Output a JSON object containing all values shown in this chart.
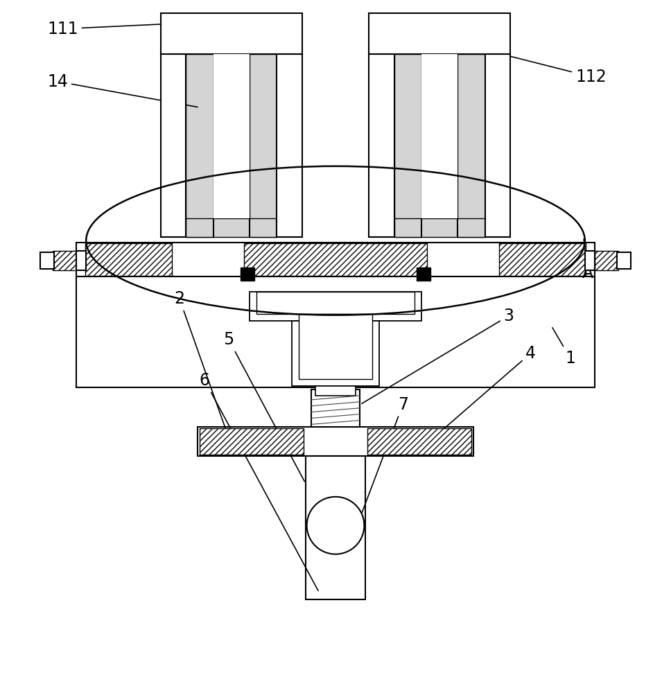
{
  "bg_color": "#ffffff",
  "lc": "#000000",
  "lw": 1.5,
  "figsize": [
    9.68,
    10.0
  ],
  "dpi": 100
}
